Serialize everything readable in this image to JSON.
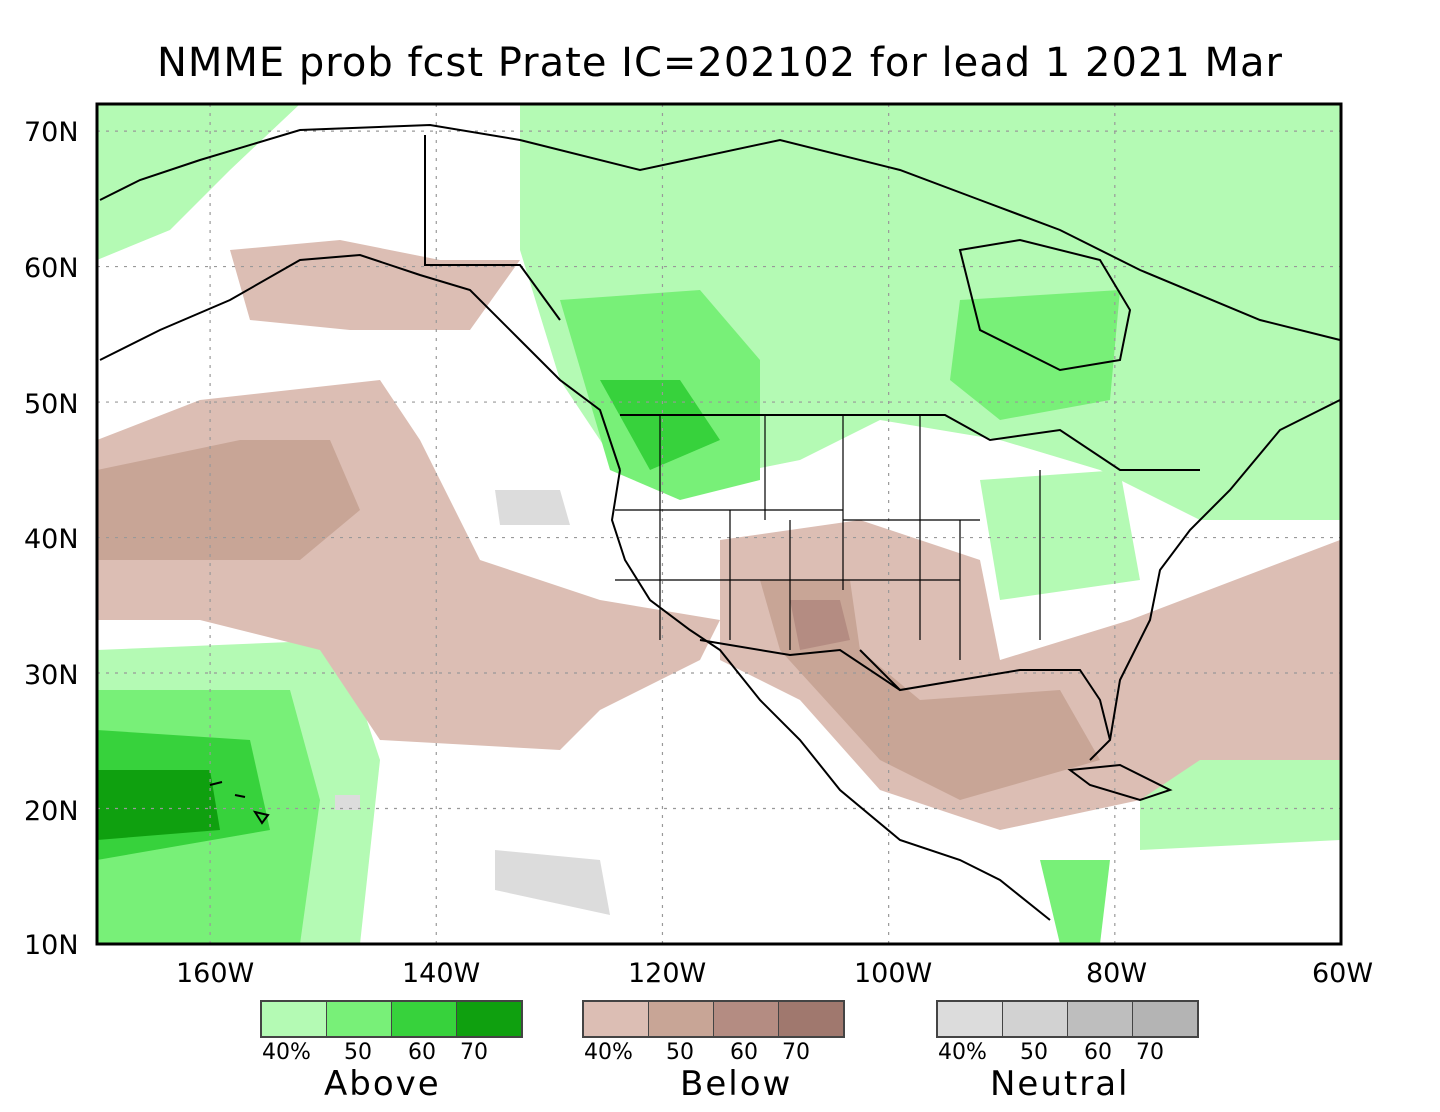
{
  "title": "NMME prob fcst Prate IC=202102 for lead 1 2021 Mar",
  "map": {
    "lon_range": [
      -170,
      -60
    ],
    "lat_range": [
      10,
      72
    ],
    "lat_labels": [
      "70N",
      "60N",
      "50N",
      "40N",
      "30N",
      "20N",
      "10N"
    ],
    "lat_values": [
      70,
      60,
      50,
      40,
      30,
      20,
      10
    ],
    "lon_labels": [
      "160W",
      "140W",
      "120W",
      "100W",
      "80W",
      "60W"
    ],
    "lon_values": [
      -160,
      -140,
      -120,
      -100,
      -80,
      -60
    ]
  },
  "colors": {
    "above": [
      "#b4fab4",
      "#78f078",
      "#37d23c",
      "#0fa00f"
    ],
    "below": [
      "#dcbeb4",
      "#c8a596",
      "#b48c82",
      "#a0786e"
    ],
    "neutral": [
      "#dcdcdc",
      "#d2d2d2",
      "#bebebe",
      "#b4b4b4"
    ],
    "land_outline": "#000000",
    "grid": "#999999"
  },
  "legend": {
    "tick_labels": [
      "40%",
      "50",
      "60",
      "70"
    ],
    "above_label": "Above",
    "below_label": "Below",
    "neutral_label": "Neutral"
  }
}
